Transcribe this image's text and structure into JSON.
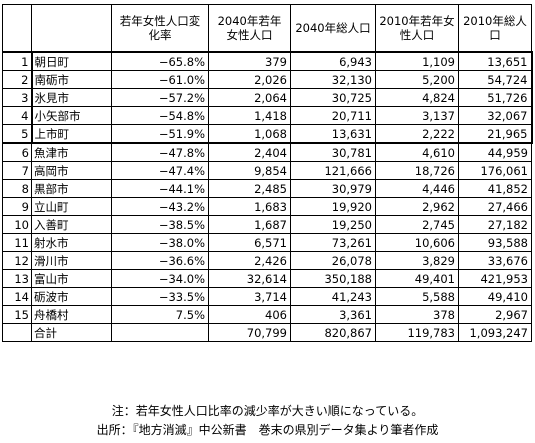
{
  "headers": {
    "col_idx": "",
    "col_name": "",
    "rate": "若年女性人口変化率",
    "f2040": "2040年若年女性人口",
    "t2040": "2040年総人口",
    "f2010": "2010年若年女性人口",
    "t2010": "2010年総人口"
  },
  "rows": [
    {
      "idx": "1",
      "name": "朝日町",
      "rate": "−65.8%",
      "f2040": "379",
      "t2040": "6,943",
      "f2010": "1,109",
      "t2010": "13,651"
    },
    {
      "idx": "2",
      "name": "南砺市",
      "rate": "−61.0%",
      "f2040": "2,026",
      "t2040": "32,130",
      "f2010": "5,200",
      "t2010": "54,724"
    },
    {
      "idx": "3",
      "name": "氷見市",
      "rate": "−57.2%",
      "f2040": "2,064",
      "t2040": "30,725",
      "f2010": "4,824",
      "t2010": "51,726"
    },
    {
      "idx": "4",
      "name": "小矢部市",
      "rate": "−54.8%",
      "f2040": "1,418",
      "t2040": "20,711",
      "f2010": "3,137",
      "t2010": "32,067"
    },
    {
      "idx": "5",
      "name": "上市町",
      "rate": "−51.9%",
      "f2040": "1,068",
      "t2040": "13,631",
      "f2010": "2,222",
      "t2010": "21,965"
    },
    {
      "idx": "6",
      "name": "魚津市",
      "rate": "−47.8%",
      "f2040": "2,404",
      "t2040": "30,781",
      "f2010": "4,610",
      "t2010": "44,959"
    },
    {
      "idx": "7",
      "name": "高岡市",
      "rate": "−47.4%",
      "f2040": "9,854",
      "t2040": "121,666",
      "f2010": "18,726",
      "t2010": "176,061"
    },
    {
      "idx": "8",
      "name": "黒部市",
      "rate": "−44.1%",
      "f2040": "2,485",
      "t2040": "30,979",
      "f2010": "4,446",
      "t2010": "41,852"
    },
    {
      "idx": "9",
      "name": "立山町",
      "rate": "−43.2%",
      "f2040": "1,683",
      "t2040": "19,920",
      "f2010": "2,962",
      "t2010": "27,466"
    },
    {
      "idx": "10",
      "name": "入善町",
      "rate": "−38.5%",
      "f2040": "1,687",
      "t2040": "19,250",
      "f2010": "2,745",
      "t2010": "27,182"
    },
    {
      "idx": "11",
      "name": "射水市",
      "rate": "−38.0%",
      "f2040": "6,571",
      "t2040": "73,261",
      "f2010": "10,606",
      "t2010": "93,588"
    },
    {
      "idx": "12",
      "name": "滑川市",
      "rate": "−36.6%",
      "f2040": "2,426",
      "t2040": "26,078",
      "f2010": "3,829",
      "t2010": "33,676"
    },
    {
      "idx": "13",
      "name": "富山市",
      "rate": "−34.0%",
      "f2040": "32,614",
      "t2040": "350,188",
      "f2010": "49,401",
      "t2010": "421,953"
    },
    {
      "idx": "14",
      "name": "砺波市",
      "rate": "−33.5%",
      "f2040": "3,714",
      "t2040": "41,243",
      "f2010": "5,588",
      "t2010": "49,410"
    },
    {
      "idx": "15",
      "name": "舟橋村",
      "rate": "7.5%",
      "f2040": "406",
      "t2040": "3,361",
      "f2010": "378",
      "t2010": "2,967"
    }
  ],
  "total": {
    "label": "合計",
    "rate": "",
    "f2040": "70,799",
    "t2040": "820,867",
    "f2010": "119,783",
    "t2010": "1,093,247"
  },
  "notes": {
    "note1": "注：若年女性人口比率の減少率が大きい順になっている。",
    "note2": "出所：『地方消滅』中公新書　巻末の県別データ集より筆者作成"
  }
}
